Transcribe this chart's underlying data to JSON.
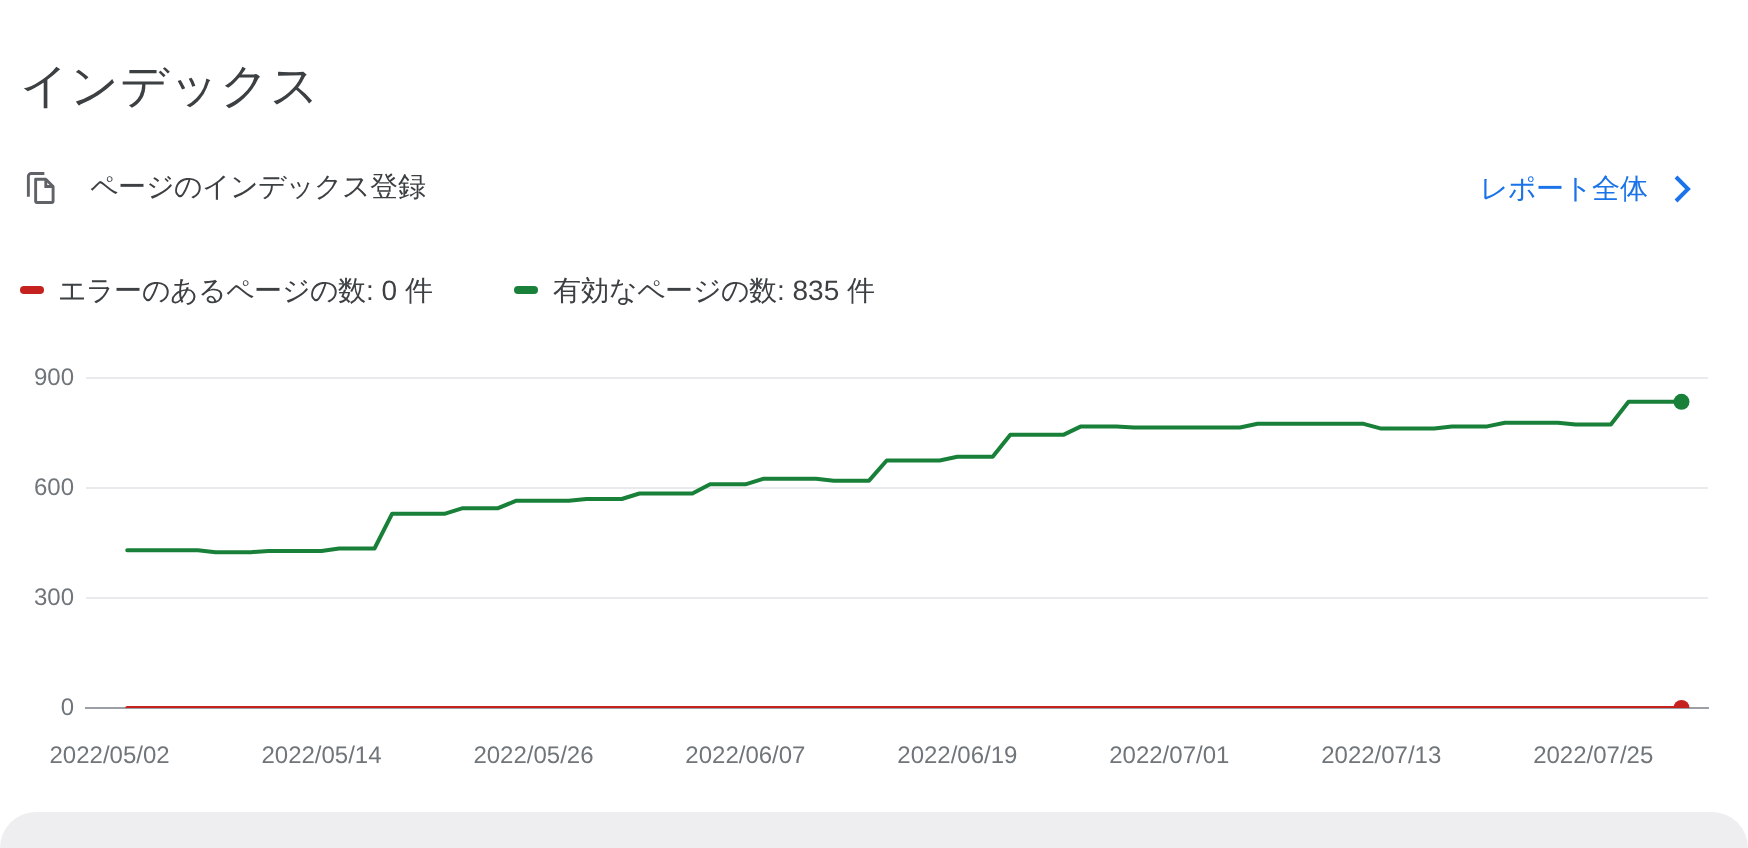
{
  "chart_data": {
    "type": "line",
    "title": "インデックス",
    "subtitle": "ページのインデックス登録",
    "annotations": [
      "レポート全体"
    ],
    "x": [
      "2022-05-03",
      "2022-05-04",
      "2022-05-05",
      "2022-05-06",
      "2022-05-07",
      "2022-05-08",
      "2022-05-09",
      "2022-05-10",
      "2022-05-11",
      "2022-05-12",
      "2022-05-13",
      "2022-05-14",
      "2022-05-15",
      "2022-05-16",
      "2022-05-17",
      "2022-05-18",
      "2022-05-19",
      "2022-05-20",
      "2022-05-21",
      "2022-05-22",
      "2022-05-23",
      "2022-05-24",
      "2022-05-25",
      "2022-05-26",
      "2022-05-27",
      "2022-05-28",
      "2022-05-29",
      "2022-05-30",
      "2022-05-31",
      "2022-06-01",
      "2022-06-02",
      "2022-06-03",
      "2022-06-04",
      "2022-06-05",
      "2022-06-06",
      "2022-06-07",
      "2022-06-08",
      "2022-06-09",
      "2022-06-10",
      "2022-06-11",
      "2022-06-12",
      "2022-06-13",
      "2022-06-14",
      "2022-06-15",
      "2022-06-16",
      "2022-06-17",
      "2022-06-18",
      "2022-06-19",
      "2022-06-20",
      "2022-06-21",
      "2022-06-22",
      "2022-06-23",
      "2022-06-24",
      "2022-06-25",
      "2022-06-26",
      "2022-06-27",
      "2022-06-28",
      "2022-06-29",
      "2022-06-30",
      "2022-07-01",
      "2022-07-02",
      "2022-07-03",
      "2022-07-04",
      "2022-07-05",
      "2022-07-06",
      "2022-07-07",
      "2022-07-08",
      "2022-07-09",
      "2022-07-10",
      "2022-07-11",
      "2022-07-12",
      "2022-07-13",
      "2022-07-14",
      "2022-07-15",
      "2022-07-16",
      "2022-07-17",
      "2022-07-18",
      "2022-07-19",
      "2022-07-20",
      "2022-07-21",
      "2022-07-22",
      "2022-07-23",
      "2022-07-24",
      "2022-07-25",
      "2022-07-26",
      "2022-07-27",
      "2022-07-28",
      "2022-07-29",
      "2022-07-30"
    ],
    "series": [
      {
        "name": "エラーのあるページの数: 0 件",
        "color": "#c5221f",
        "values": [
          0,
          0,
          0,
          0,
          0,
          0,
          0,
          0,
          0,
          0,
          0,
          0,
          0,
          0,
          0,
          0,
          0,
          0,
          0,
          0,
          0,
          0,
          0,
          0,
          0,
          0,
          0,
          0,
          0,
          0,
          0,
          0,
          0,
          0,
          0,
          0,
          0,
          0,
          0,
          0,
          0,
          0,
          0,
          0,
          0,
          0,
          0,
          0,
          0,
          0,
          0,
          0,
          0,
          0,
          0,
          0,
          0,
          0,
          0,
          0,
          0,
          0,
          0,
          0,
          0,
          0,
          0,
          0,
          0,
          0,
          0,
          0,
          0,
          0,
          0,
          0,
          0,
          0,
          0,
          0,
          0,
          0,
          0,
          0,
          0,
          0,
          0,
          0,
          0
        ]
      },
      {
        "name": "有効なページの数: 835 件",
        "color": "#188038",
        "values": [
          430,
          430,
          430,
          430,
          430,
          425,
          425,
          425,
          428,
          428,
          428,
          428,
          435,
          435,
          435,
          530,
          530,
          530,
          530,
          545,
          545,
          545,
          565,
          565,
          565,
          565,
          570,
          570,
          570,
          585,
          585,
          585,
          585,
          610,
          610,
          610,
          625,
          625,
          625,
          625,
          620,
          620,
          620,
          675,
          675,
          675,
          675,
          685,
          685,
          685,
          745,
          745,
          745,
          745,
          768,
          768,
          768,
          765,
          765,
          765,
          765,
          765,
          765,
          765,
          775,
          775,
          775,
          775,
          775,
          775,
          775,
          762,
          762,
          762,
          762,
          768,
          768,
          768,
          778,
          778,
          778,
          778,
          773,
          773,
          773,
          835,
          835,
          835,
          835
        ]
      }
    ],
    "xlim": [
      "2022-04-30T16:00",
      "2022-07-31T12:00"
    ],
    "xticks": [
      {
        "value": "2022-05-02",
        "label": "2022/05/02"
      },
      {
        "value": "2022-05-14",
        "label": "2022/05/14"
      },
      {
        "value": "2022-05-26",
        "label": "2022/05/26"
      },
      {
        "value": "2022-06-07",
        "label": "2022/06/07"
      },
      {
        "value": "2022-06-19",
        "label": "2022/06/19"
      },
      {
        "value": "2022-07-01",
        "label": "2022/07/01"
      },
      {
        "value": "2022-07-13",
        "label": "2022/07/13"
      },
      {
        "value": "2022-07-25",
        "label": "2022/07/25"
      }
    ],
    "ylim": [
      0,
      900
    ],
    "yticks": [
      0,
      300,
      600,
      900
    ],
    "grid": "y",
    "legend": "top left"
  }
}
